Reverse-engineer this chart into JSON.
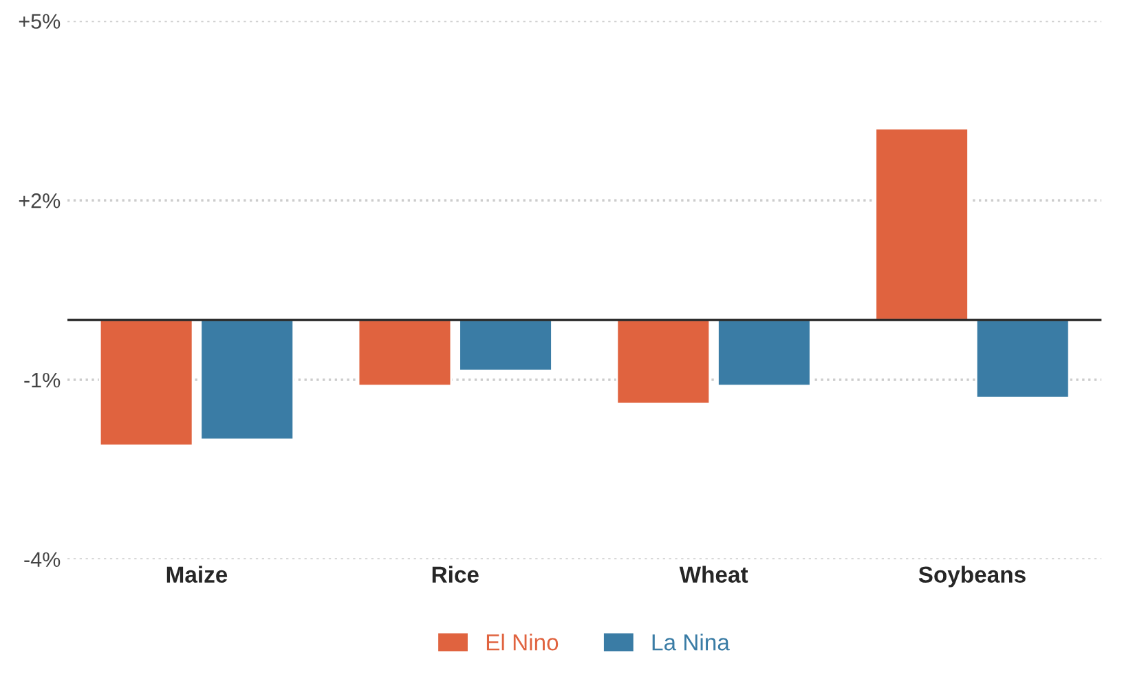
{
  "chart_data": {
    "type": "bar",
    "categories": [
      "Maize",
      "Rice",
      "Wheat",
      "Soybeans"
    ],
    "series": [
      {
        "name": "El Nino",
        "color": "#e0633f",
        "values": [
          -2.1,
          -1.1,
          -1.4,
          3.2
        ]
      },
      {
        "name": "La Nina",
        "color": "#3a7ca5",
        "values": [
          -2.0,
          -0.85,
          -1.1,
          -1.3
        ]
      }
    ],
    "ylim": [
      -4,
      5
    ],
    "yticks": [
      {
        "value": 5,
        "label": "+5%"
      },
      {
        "value": 2,
        "label": "+2%"
      },
      {
        "value": -1,
        "label": "-1%"
      },
      {
        "value": -4,
        "label": "-4%"
      }
    ],
    "ref_lines": [
      {
        "axis": "y",
        "value": 0,
        "color": "#222222"
      }
    ],
    "grid": "y",
    "legend": "bottom"
  }
}
